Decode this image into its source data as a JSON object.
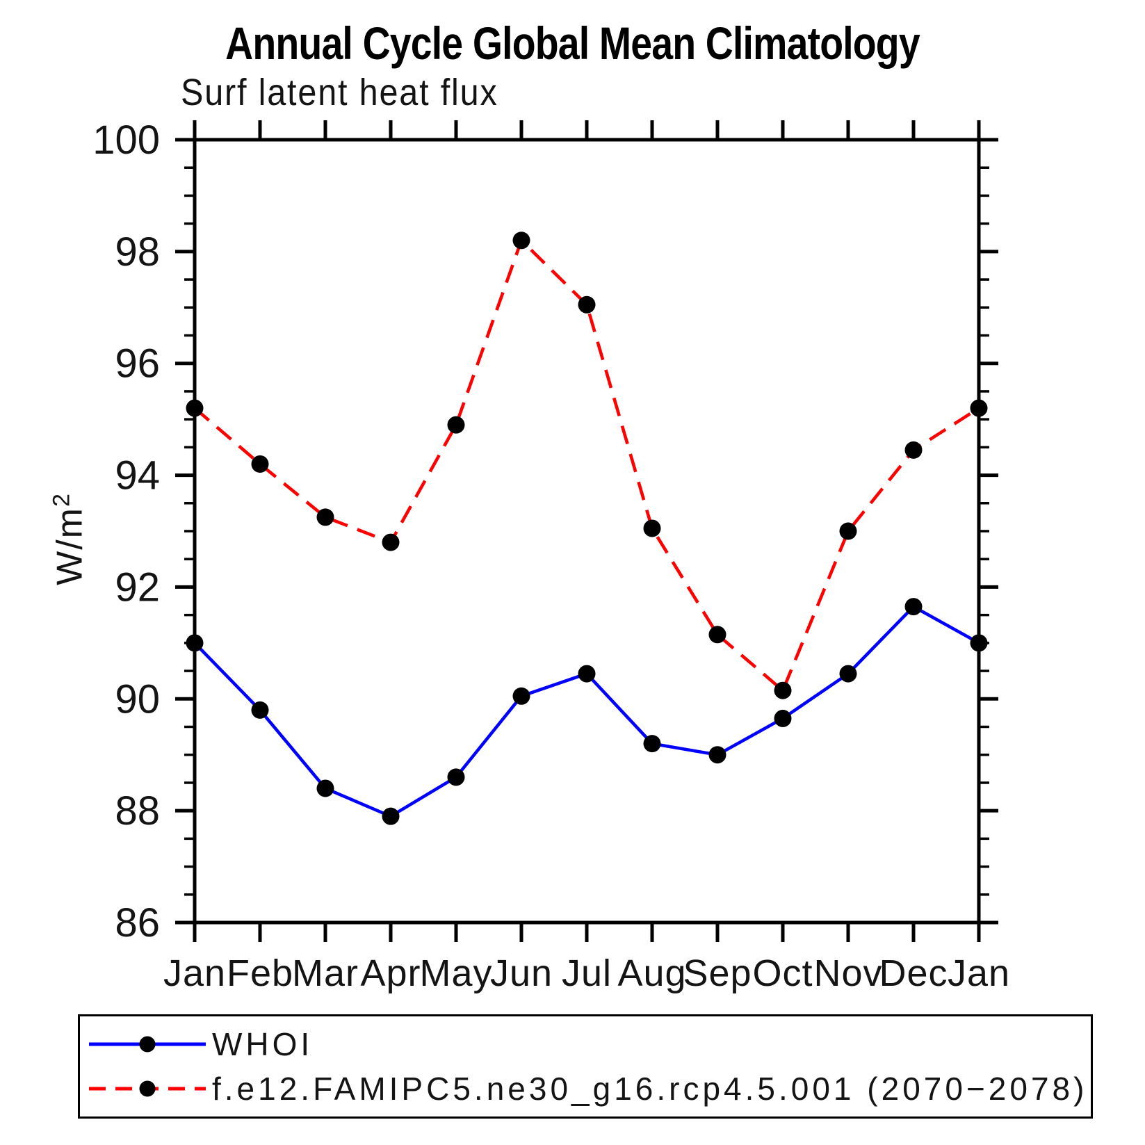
{
  "chart_data": {
    "type": "line",
    "title": "Annual Cycle Global Mean Climatology",
    "subtitle": "Surf latent heat flux",
    "ylabel": "W/m²",
    "ylabel_parts": {
      "base": "W/m",
      "sup": "2"
    },
    "x_categories": [
      "Jan",
      "Feb",
      "Mar",
      "Apr",
      "May",
      "Jun",
      "Jul",
      "Aug",
      "Sep",
      "Oct",
      "Nov",
      "Dec",
      "Jan"
    ],
    "ylim": [
      86,
      100
    ],
    "yticks": [
      86,
      88,
      90,
      92,
      94,
      96,
      98,
      100
    ],
    "ytick_minor_interval": 0.5,
    "grid": false,
    "frame": "box",
    "tick_direction": "out",
    "legend_position": "bottom",
    "marker_color": "#000000",
    "series": [
      {
        "name": "WHOI",
        "color": "#0000ff",
        "style": "solid",
        "marker": "circle",
        "values": [
          91.0,
          89.8,
          88.4,
          87.9,
          88.6,
          90.05,
          90.45,
          89.2,
          89.0,
          89.65,
          90.45,
          91.65,
          91.0
        ]
      },
      {
        "name": "f.e12.FAMIPC5.ne30_g16.rcp4.5.001 (2070−2078)",
        "color": "#ff0000",
        "style": "dashed",
        "marker": "circle",
        "values": [
          95.2,
          94.2,
          93.25,
          92.8,
          94.9,
          98.2,
          97.05,
          93.05,
          91.15,
          90.15,
          93.0,
          94.45,
          95.2
        ]
      }
    ]
  }
}
